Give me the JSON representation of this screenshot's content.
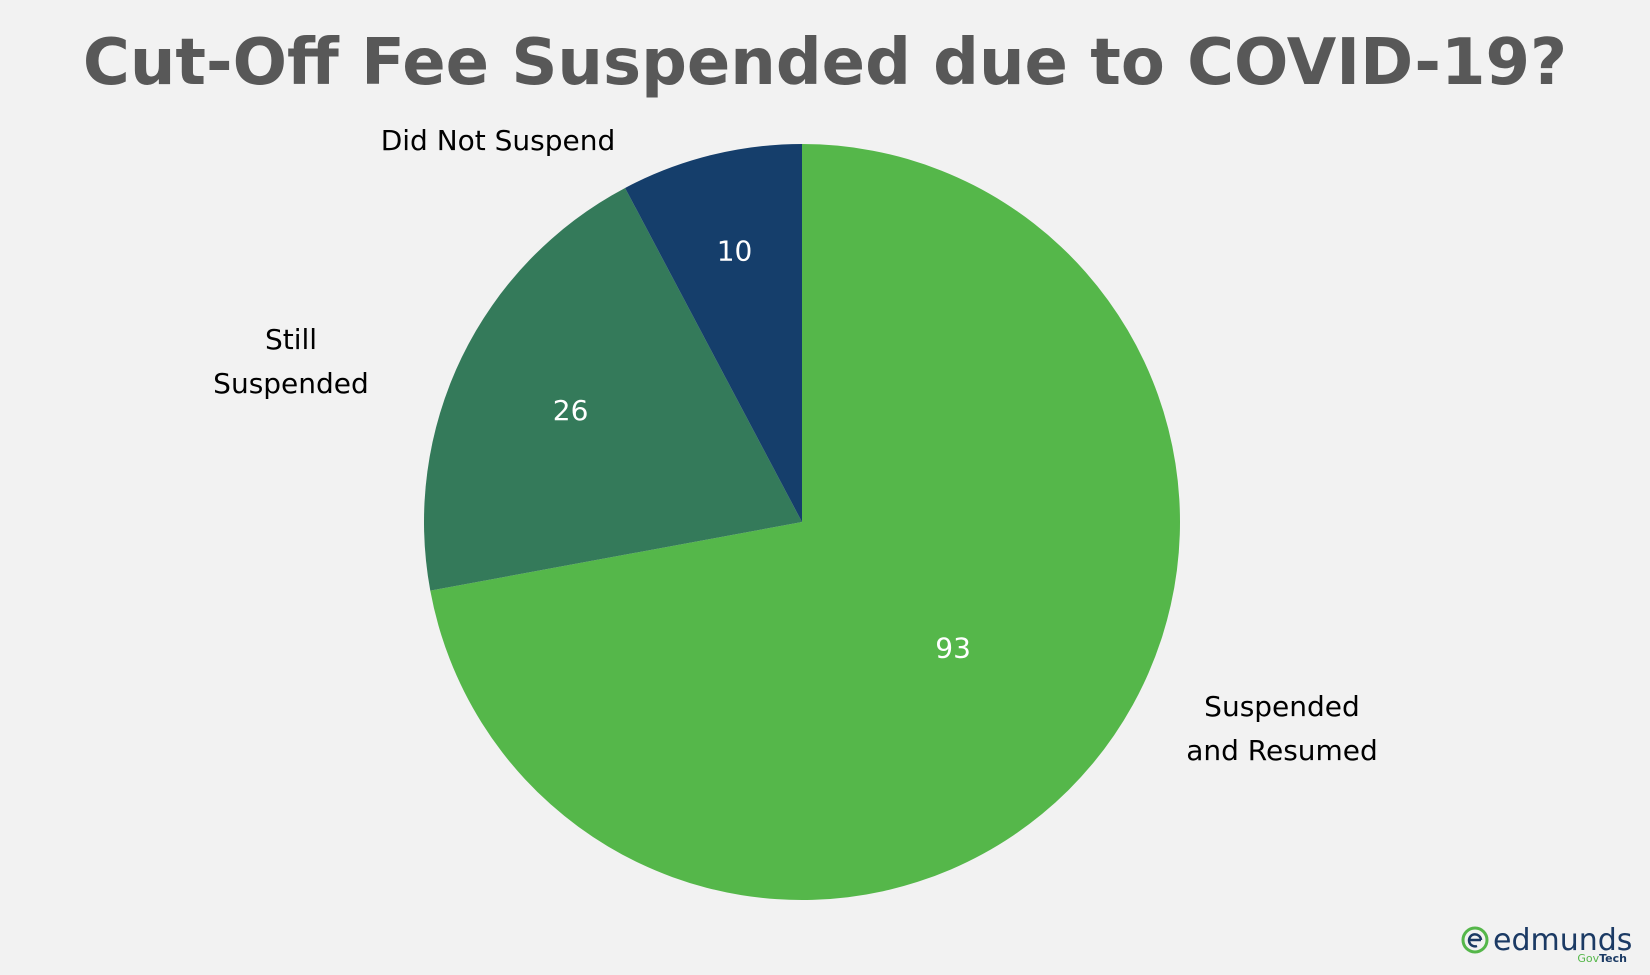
{
  "chart_data": {
    "type": "pie",
    "title": "Cut-Off Fee Suspended due to COVID-19?",
    "start_angle_deg": 0,
    "direction": "clockwise",
    "slices": [
      {
        "label_lines": [
          "Suspended",
          "and Resumed"
        ],
        "value": 93,
        "color": "#55b74a"
      },
      {
        "label_lines": [
          "Still",
          "Suspended"
        ],
        "value": 26,
        "color": "#347a5a"
      },
      {
        "label_lines": [
          "Did Not Suspend"
        ],
        "value": 10,
        "color": "#153e6b"
      }
    ]
  },
  "logo": {
    "wordmark": "edmunds",
    "sub_gov": "Gov",
    "sub_tech": "Tech",
    "colors": {
      "primary": "#1b3a64",
      "accent": "#55b74a"
    }
  }
}
